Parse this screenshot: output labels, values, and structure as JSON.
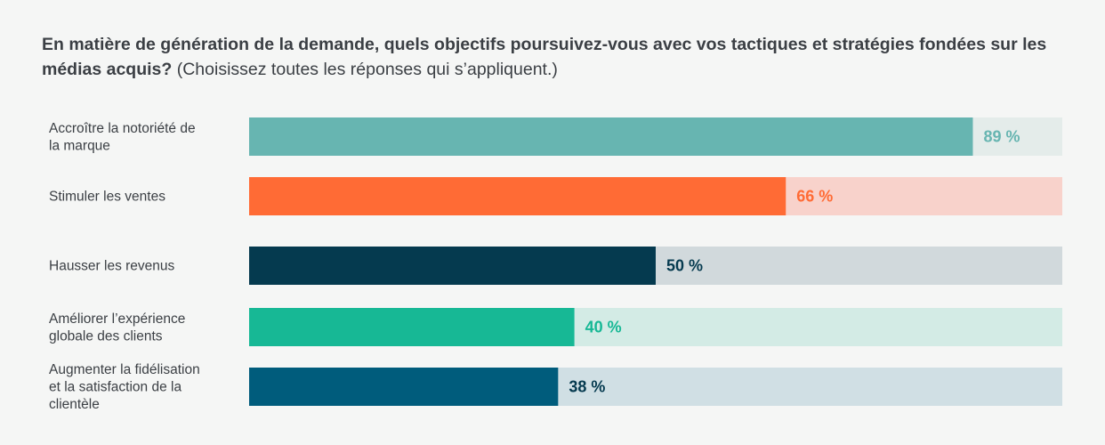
{
  "chart_data": {
    "type": "bar",
    "orientation": "horizontal",
    "title_bold": "En matière de génération de la demande, quels objectifs poursuivez-vous avec vos tactiques et stratégies fondées sur les médias acquis?",
    "title_normal": "(Choisissez toutes les réponses qui s’appliquent.)",
    "xlim": [
      0,
      100
    ],
    "grid": false,
    "categories": [
      [
        "Accroître la notoriété de",
        "la marque"
      ],
      [
        "Stimuler les ventes"
      ],
      [
        "Hausser les revenus"
      ],
      [
        "Améliorer l’expérience",
        "globale des clients"
      ],
      [
        "Augmenter la fidélisation",
        "et la satisfaction de la",
        "clientèle"
      ]
    ],
    "values": [
      89,
      66,
      50,
      40,
      38
    ],
    "value_labels": [
      "89 %",
      "66 %",
      "50 %",
      "40 %",
      "38 %"
    ],
    "colors": {
      "bars": [
        "#67b5b1",
        "#ff6b35",
        "#053a4f",
        "#17b895",
        "#005c7c"
      ],
      "tracks": [
        "#e4ecea",
        "#f8d2cb",
        "#d1d9dc",
        "#d3ebe5",
        "#d0dfe4"
      ],
      "labels": [
        "#67b5b1",
        "#ff6b35",
        "#053a4f",
        "#17b895",
        "#053a4f"
      ]
    }
  }
}
